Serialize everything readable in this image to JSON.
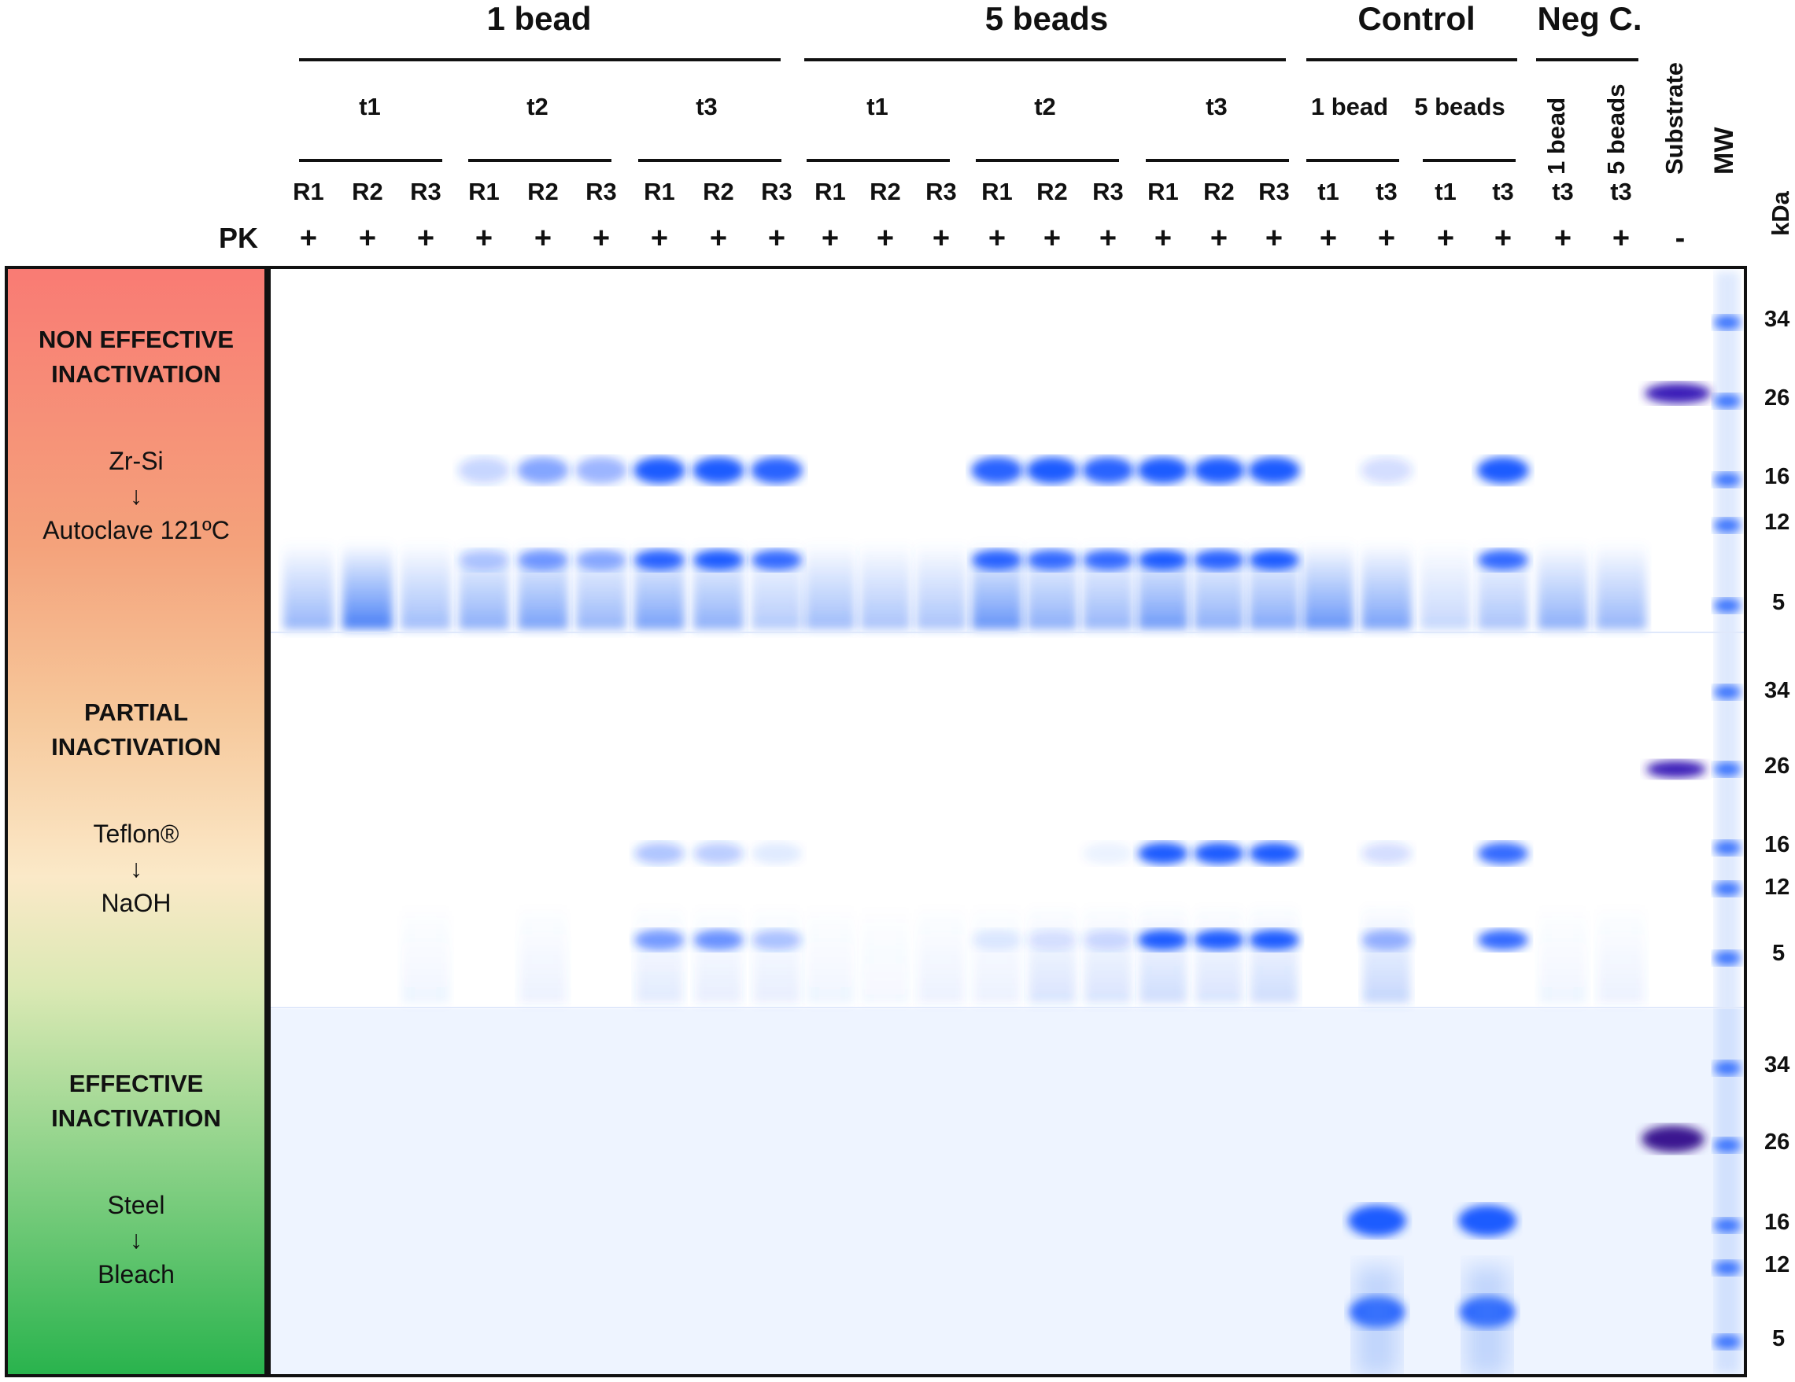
{
  "groups": {
    "one_bead": "1 bead",
    "five_beads": "5 beads",
    "control": "Control",
    "neg_c": "Neg C."
  },
  "subgroups": {
    "t1a": "t1",
    "t2a": "t2",
    "t3a": "t3",
    "t1b": "t1",
    "t2b": "t2",
    "t3b": "t3",
    "ctrl_1bead": "1 bead",
    "ctrl_5beads": "5 beads"
  },
  "vertical_labels": {
    "neg_1bead": "1 bead",
    "neg_5beads": "5 beads",
    "substrate": "Substrate",
    "mw": "MW",
    "kda": "kDa"
  },
  "pk_label": "PK",
  "lanes": [
    "R1",
    "R2",
    "R3",
    "R1",
    "R2",
    "R3",
    "R1",
    "R2",
    "R3",
    "R1",
    "R2",
    "R3",
    "R1",
    "R2",
    "R3",
    "R1",
    "R2",
    "R3",
    "t1",
    "t3",
    "t1",
    "t3",
    "t3",
    "t3"
  ],
  "pk_values": [
    "+",
    "+",
    "+",
    "+",
    "+",
    "+",
    "+",
    "+",
    "+",
    "+",
    "+",
    "+",
    "+",
    "+",
    "+",
    "+",
    "+",
    "+",
    "+",
    "+",
    "+",
    "+",
    "+",
    "+",
    "-"
  ],
  "panels": [
    {
      "heading_line1": "NON EFFECTIVE",
      "heading_line2": "INACTIVATION",
      "material": "Zr-Si",
      "arrow": "↓",
      "treatment": "Autoclave 121ºC"
    },
    {
      "heading_line1": "PARTIAL",
      "heading_line2": "INACTIVATION",
      "material": "Teflon®",
      "arrow": "↓",
      "treatment": "NaOH"
    },
    {
      "heading_line1": "EFFECTIVE",
      "heading_line2": "INACTIVATION",
      "material": "Steel",
      "arrow": "↓",
      "treatment": "Bleach"
    }
  ],
  "mw_markers": [
    "34",
    "26",
    "16",
    "12",
    "5"
  ],
  "colors": {
    "band": "#1f5bff",
    "substrate": "#3a1fb8",
    "smear": "#4f86f7"
  }
}
